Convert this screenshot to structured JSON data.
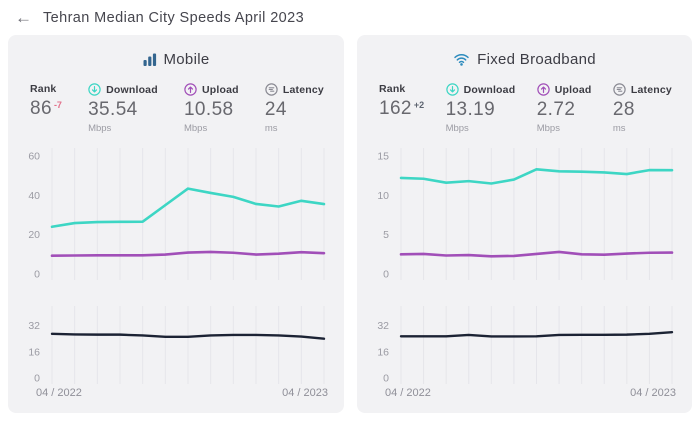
{
  "header": {
    "back_icon": "←",
    "title": "Tehran Median City Speeds April 2023"
  },
  "colors": {
    "panel_bg": "#f2f2f4",
    "download_teal": "#3dd6c4",
    "upload_purple": "#a14fb8",
    "latency_navy": "#1c2334",
    "mobile_icon_blue": "#34668f",
    "wifi_icon_blue": "#2e8cbe",
    "rank_delta_negative": "#e2708a",
    "rank_delta_positive": "#5d6470",
    "gridline": "#e5e5ea",
    "tick_label": "#9b9ba3"
  },
  "panels": [
    {
      "id": "mobile",
      "title": "Mobile",
      "stats": [
        {
          "label": "Rank",
          "value": "86",
          "delta": "-7",
          "unit": ""
        },
        {
          "label": "Download",
          "value": "35.54",
          "unit": "Mbps"
        },
        {
          "label": "Upload",
          "value": "10.58",
          "unit": "Mbps"
        },
        {
          "label": "Latency",
          "value": "24",
          "unit": "ms"
        }
      ]
    },
    {
      "id": "fixed",
      "title": "Fixed Broadband",
      "stats": [
        {
          "label": "Rank",
          "value": "162",
          "delta": "+2",
          "unit": ""
        },
        {
          "label": "Download",
          "value": "13.19",
          "unit": "Mbps"
        },
        {
          "label": "Upload",
          "value": "2.72",
          "unit": "Mbps"
        },
        {
          "label": "Latency",
          "value": "28",
          "unit": "ms"
        }
      ]
    }
  ],
  "chart_data": [
    {
      "id": "mobile-speeds",
      "type": "line",
      "panel": "Mobile",
      "title": "Mobile median download/upload speed, monthly 04/2022 - 04/2023 (Mbps)",
      "kind": "speed",
      "yticks": [
        0,
        20,
        40,
        60
      ],
      "ylim": [
        0,
        62
      ],
      "x_start": "04 / 2022",
      "x_end": "04 / 2023",
      "show_x_labels": false,
      "series": [
        {
          "name": "Download",
          "color": "#3dd6c4",
          "values": [
            24.0,
            25.9,
            26.4,
            26.5,
            26.6,
            35.0,
            43.4,
            41.2,
            39.2,
            35.6,
            34.3,
            37.2,
            35.54
          ]
        },
        {
          "name": "Upload",
          "color": "#a14fb8",
          "values": [
            9.3,
            9.4,
            9.5,
            9.5,
            9.5,
            9.9,
            10.9,
            11.2,
            10.8,
            9.9,
            10.3,
            11.1,
            10.58
          ]
        }
      ]
    },
    {
      "id": "mobile-latency",
      "type": "line",
      "panel": "Mobile",
      "title": "Mobile median latency, monthly 04/2022 - 04/2023 (ms)",
      "kind": "latency",
      "yticks": [
        0,
        16,
        32
      ],
      "ylim": [
        0,
        44
      ],
      "x_start": "04 / 2022",
      "x_end": "04 / 2023",
      "show_x_labels": true,
      "series": [
        {
          "name": "Latency",
          "color": "#1c2334",
          "values": [
            27.0,
            26.6,
            26.5,
            26.5,
            26.0,
            25.2,
            25.2,
            26.0,
            26.3,
            26.3,
            26.0,
            25.3,
            24.0
          ]
        }
      ]
    },
    {
      "id": "fixed-speeds",
      "type": "line",
      "panel": "Fixed Broadband",
      "title": "Fixed median download/upload speed, monthly 04/2022 - 04/2023 (Mbps)",
      "kind": "speed",
      "yticks": [
        0,
        5,
        10,
        15
      ],
      "ylim": [
        0,
        15.5
      ],
      "x_start": "04 / 2022",
      "x_end": "04 / 2023",
      "show_x_labels": false,
      "series": [
        {
          "name": "Download",
          "color": "#3dd6c4",
          "values": [
            12.2,
            12.1,
            11.6,
            11.8,
            11.5,
            12.0,
            13.3,
            13.05,
            13.0,
            12.9,
            12.7,
            13.2,
            13.19
          ]
        },
        {
          "name": "Upload",
          "color": "#a14fb8",
          "values": [
            2.5,
            2.55,
            2.35,
            2.4,
            2.25,
            2.3,
            2.55,
            2.8,
            2.5,
            2.45,
            2.6,
            2.7,
            2.72
          ]
        }
      ]
    },
    {
      "id": "fixed-latency",
      "type": "line",
      "panel": "Fixed Broadband",
      "title": "Fixed median latency, monthly 04/2022 - 04/2023 (ms)",
      "kind": "latency",
      "yticks": [
        0,
        16,
        32
      ],
      "ylim": [
        0,
        44
      ],
      "x_start": "04 / 2022",
      "x_end": "04 / 2023",
      "show_x_labels": true,
      "series": [
        {
          "name": "Latency",
          "color": "#1c2334",
          "values": [
            25.5,
            25.5,
            25.5,
            26.3,
            25.4,
            25.4,
            25.5,
            26.3,
            26.4,
            26.4,
            26.5,
            27.0,
            28.0
          ]
        }
      ]
    }
  ]
}
